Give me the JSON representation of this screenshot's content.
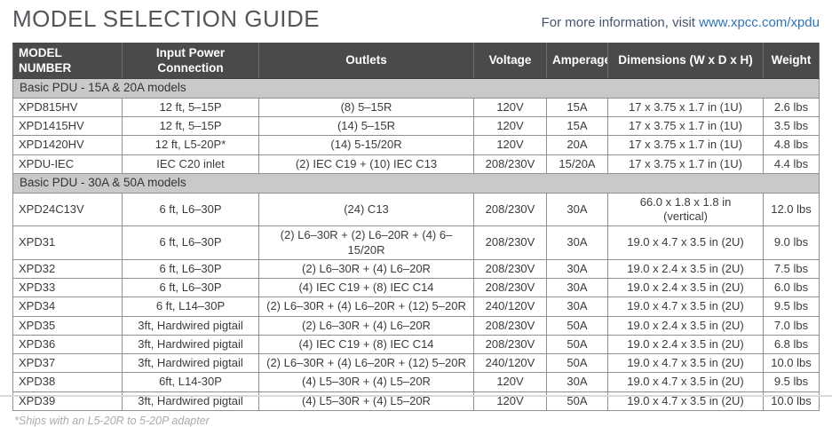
{
  "page": {
    "title": "MODEL SELECTION GUIDE",
    "info_text": "For more information, visit ",
    "info_link": "www.xpcc.com/xpdu",
    "footnote": "*Ships with an L5-20R to 5-20P adapter"
  },
  "colors": {
    "header_bg": "#4a4a4c",
    "header_text": "#ffffff",
    "section_bg": "#c9c9cb",
    "title_text": "#54565b",
    "link_blue": "#2e74b5",
    "body_text": "#3b3b3b",
    "border": "#8f9092"
  },
  "table": {
    "columns": [
      "MODEL NUMBER",
      "Input Power Connection",
      "Outlets",
      "Voltage",
      "Amperage",
      "Dimensions (W x D x H)",
      "Weight"
    ],
    "sections": [
      {
        "label": "Basic PDU - 15A & 20A models",
        "rows": [
          [
            "XPD815HV",
            "12 ft, 5–15P",
            "(8) 5–15R",
            "120V",
            "15A",
            "17 x 3.75 x 1.7 in (1U)",
            "2.6 lbs"
          ],
          [
            "XPD1415HV",
            "12 ft, 5–15P",
            "(14) 5–15R",
            "120V",
            "15A",
            "17 x 3.75 x 1.7 in (1U)",
            "3.5 lbs"
          ],
          [
            "XPD1420HV",
            "12 ft, L5-20P*",
            "(14) 5-15/20R",
            "120V",
            "20A",
            "17 x 3.75 x 1.7 in (1U)",
            "4.8 lbs"
          ],
          [
            "XPDU-IEC",
            "IEC C20 inlet",
            "(2) IEC C19 + (10) IEC C13",
            "208/230V",
            "15/20A",
            "17 x 3.75 x 1.7 in (1U)",
            "4.4 lbs"
          ]
        ]
      },
      {
        "label": "Basic PDU - 30A & 50A models",
        "rows": [
          [
            "XPD24C13V",
            "6 ft, L6–30P",
            "(24) C13",
            "208/230V",
            "30A",
            "66.0 x 1.8 x 1.8 in\n(vertical)",
            "12.0 lbs"
          ],
          [
            "XPD31",
            "6 ft, L6–30P",
            "(2) L6–30R + (2) L6–20R + (4) 6–15/20R",
            "208/230V",
            "30A",
            "19.0 x 4.7 x 3.5 in (2U)",
            "9.0 lbs"
          ],
          [
            "XPD32",
            "6 ft, L6–30P",
            "(2) L6–30R + (4) L6–20R",
            "208/230V",
            "30A",
            "19.0 x 2.4 x 3.5 in (2U)",
            "7.5 lbs"
          ],
          [
            "XPD33",
            "6 ft, L6–30P",
            "(4) IEC C19 + (8) IEC C14",
            "208/230V",
            "30A",
            "19.0 x 2.4 x 3.5 in (2U)",
            "6.0 lbs"
          ],
          [
            "XPD34",
            "6 ft, L14–30P",
            "(2) L6–30R + (4) L6–20R + (12) 5–20R",
            "240/120V",
            "30A",
            "19.0 x 4.7 x 3.5 in (2U)",
            "9.5 lbs"
          ],
          [
            "XPD35",
            "3ft, Hardwired pigtail",
            "(2) L6–30R + (4) L6–20R",
            "208/230V",
            "50A",
            "19.0 x 2.4 x 3.5 in (2U)",
            "7.0 lbs"
          ],
          [
            "XPD36",
            "3ft, Hardwired pigtail",
            "(4) IEC C19 + (8) IEC C14",
            "208/230V",
            "50A",
            "19.0 x 2.4 x 3.5 in (2U)",
            "6.8 lbs"
          ],
          [
            "XPD37",
            "3ft, Hardwired pigtail",
            "(2) L6–30R + (4) L6–20R + (12) 5–20R",
            "240/120V",
            "50A",
            "19.0 x 4.7 x 3.5 in (2U)",
            "10.0 lbs"
          ],
          [
            "XPD38",
            "6ft, L14-30P",
            "(4) L5–30R + (4) L5–20R",
            "120V",
            "30A",
            "19.0 x 4.7 x 3.5 in (2U)",
            "9.5 lbs"
          ],
          [
            "XPD39",
            "3ft, Hardwired pigtail",
            "(4) L5–30R + (4) L5–20R",
            "120V",
            "50A",
            "19.0 x 4.7 x 3.5 in (2U)",
            "10.0 lbs"
          ]
        ]
      }
    ]
  }
}
